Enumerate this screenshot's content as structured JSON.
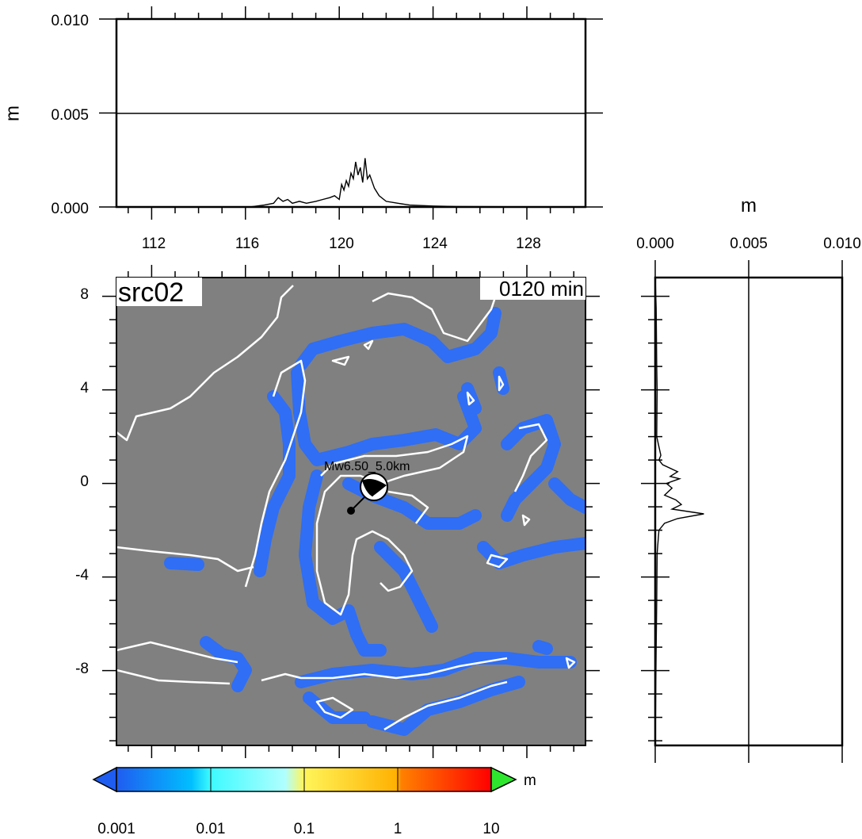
{
  "map": {
    "title": "src02",
    "time_label": "0120 min",
    "event_label": "Mw6.50_5.0km",
    "lon_range": [
      110.5,
      130.5
    ],
    "lat_range": [
      -11.2,
      8.8
    ],
    "lon_ticks": [
      "112",
      "116",
      "120",
      "124",
      "128"
    ],
    "lat_ticks": [
      "8",
      "4",
      "0",
      "-4",
      "-8"
    ],
    "epicenter": {
      "lon": 120.4,
      "lat": -1.3
    },
    "beachball": {
      "lon": 121.5,
      "lat": -0.3
    },
    "colors": {
      "ocean": "#808080",
      "coast": "#ffffff",
      "wave": "#2f6ef5"
    }
  },
  "top_profile": {
    "ylabel": "m",
    "yticks": [
      "0.010",
      "0.005",
      "0.000"
    ],
    "ylim": [
      0,
      0.01
    ],
    "xlim": [
      110.5,
      130.5
    ]
  },
  "right_profile": {
    "xlabel": "m",
    "xticks": [
      "0.000",
      "0.005",
      "0.010"
    ],
    "xlim": [
      0,
      0.01
    ],
    "ylim": [
      -11.2,
      8.8
    ]
  },
  "colorbar": {
    "unit": "m",
    "ticks": [
      "0.001",
      "0.01",
      "0.1",
      "1",
      "10"
    ],
    "gradient": [
      "#1f5cf0",
      "#00c8ff",
      "#5affff",
      "#fff55a",
      "#ffb400",
      "#ff6000",
      "#ff0000"
    ],
    "above_color": "#2ee62e",
    "below_color": "#1f5cf0"
  },
  "chart_data": [
    {
      "type": "line",
      "title": "",
      "xlabel": "",
      "ylabel": "m",
      "xlim": [
        110.5,
        130.5
      ],
      "ylim": [
        0,
        0.01
      ],
      "series": [
        {
          "x": [
            110.5,
            116.2,
            116.8,
            117.2,
            117.4,
            117.6,
            117.8,
            118.0,
            118.3,
            118.6,
            119.0,
            119.3,
            119.6,
            119.8,
            120.0,
            120.1,
            120.2,
            120.3,
            120.4,
            120.5,
            120.6,
            120.7,
            120.8,
            120.9,
            121.0,
            121.1,
            121.2,
            121.3,
            121.5,
            121.7,
            122.0,
            122.5,
            123.0,
            124.0,
            125.0,
            130.5
          ],
          "y": [
            0,
            0,
            0.0001,
            0.0002,
            0.0005,
            0.0003,
            0.0004,
            0.0002,
            0.0003,
            0.0002,
            0.0003,
            0.0004,
            0.0005,
            0.0006,
            0.0004,
            0.0012,
            0.0009,
            0.0014,
            0.0011,
            0.0018,
            0.0015,
            0.0024,
            0.0017,
            0.0021,
            0.0013,
            0.0026,
            0.0015,
            0.0017,
            0.001,
            0.0006,
            0.0003,
            0.0002,
            0.0001,
            5e-05,
            2e-05,
            0
          ]
        }
      ]
    },
    {
      "type": "line",
      "title": "",
      "xlabel": "m",
      "ylabel": "",
      "xlim": [
        0,
        0.01
      ],
      "ylim": [
        -11.2,
        8.8
      ],
      "series": [
        {
          "lat": [
            8.8,
            7.5,
            5.0,
            4.0,
            2.0,
            1.2,
            1.0,
            0.8,
            0.5,
            0.3,
            0.2,
            0.0,
            -0.2,
            -0.5,
            -0.7,
            -0.9,
            -1.1,
            -1.3,
            -1.5,
            -1.7,
            -2.0,
            -3.0,
            -5.0,
            -7.0,
            -11.2
          ],
          "value": [
            0,
            5e-05,
            8e-05,
            0.0001,
            8e-05,
            0.0003,
            0.0002,
            0.0004,
            0.0012,
            0.0008,
            0.0013,
            0.0006,
            0.0009,
            0.0005,
            0.0011,
            0.0014,
            0.0009,
            0.0026,
            0.0012,
            0.0005,
            0.0002,
            0.0001,
            8e-05,
            5e-05,
            0
          ]
        }
      ]
    }
  ]
}
